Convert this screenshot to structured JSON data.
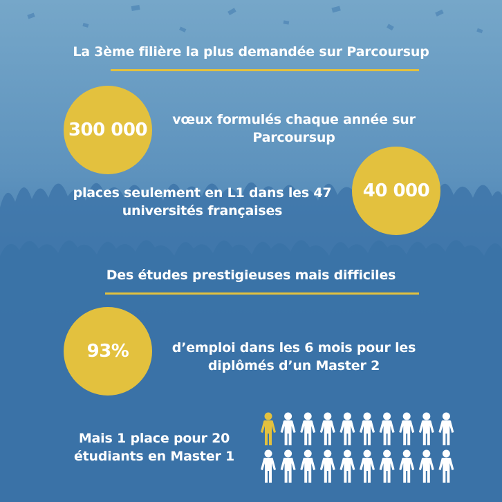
{
  "colors": {
    "background": "#3a72a6",
    "background_top": "#6fa2c6",
    "accent": "#e3c13e",
    "text": "#ffffff",
    "highlighted_person": "#e3c13e",
    "person": "#ffffff"
  },
  "section1": {
    "heading": "La 3ème filière la plus demandée sur Parcoursup",
    "stats": [
      {
        "value": "300 000",
        "text_line1": "vœux formulés chaque année sur",
        "text_line2": "Parcoursup"
      },
      {
        "value": "40 000",
        "text_line1": "places seulement en L1 dans les 47",
        "text_line2": "universités françaises"
      }
    ]
  },
  "section2": {
    "heading": "Des études prestigieuses mais difficiles",
    "stat": {
      "value": "93%",
      "text_line1": "d’emploi dans les 6 mois pour les",
      "text_line2": "diplômés d’un Master 2"
    },
    "ratio": {
      "text_line1": "Mais 1 place pour 20",
      "text_line2": "étudiants en Master 1",
      "highlighted": 1,
      "total": 20,
      "icon": "person-icon"
    }
  }
}
